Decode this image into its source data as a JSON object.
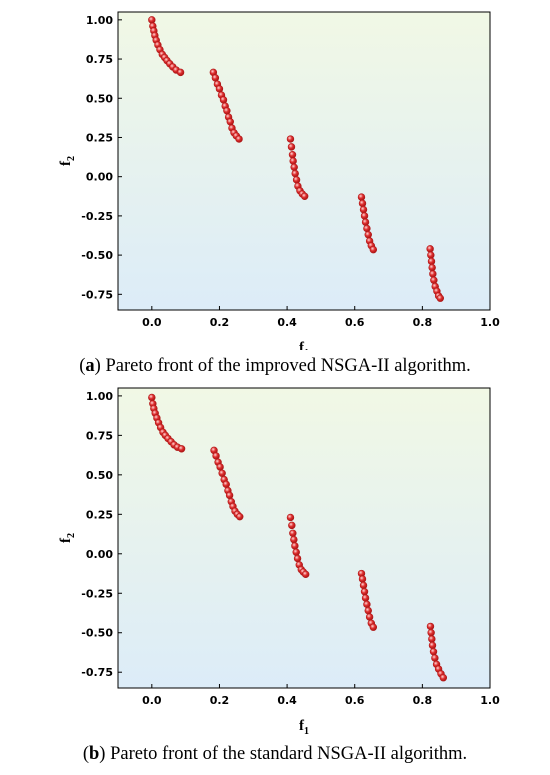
{
  "chart_data": [
    {
      "type": "scatter",
      "caption_letter": "a",
      "caption_text": "Pareto front of the improved NSGA-II algorithm.",
      "xlabel": "f",
      "xlabel_sub": "1",
      "ylabel": "f",
      "ylabel_sub": "2",
      "xlim": [
        -0.1,
        1.0
      ],
      "ylim": [
        -0.85,
        1.05
      ],
      "xticks": [
        0.0,
        0.2,
        0.4,
        0.6,
        0.8,
        1.0
      ],
      "xtick_labels": [
        "0.0",
        "0.2",
        "0.4",
        "0.6",
        "0.8",
        "1.0"
      ],
      "yticks": [
        1.0,
        0.75,
        0.5,
        0.25,
        0.0,
        -0.25,
        -0.5,
        -0.75
      ],
      "ytick_labels": [
        "1.00",
        "0.75",
        "0.50",
        "0.25",
        "0.00",
        "-0.25",
        "-0.50",
        "-0.75"
      ],
      "grid": false,
      "background": "gradient light green (top) to light blue (bottom)",
      "marker_color": "#e03030",
      "series": [
        {
          "points": [
            [
              0.0,
              1.0
            ],
            [
              0.003,
              0.96
            ],
            [
              0.006,
              0.93
            ],
            [
              0.009,
              0.9
            ],
            [
              0.013,
              0.87
            ],
            [
              0.018,
              0.84
            ],
            [
              0.024,
              0.81
            ],
            [
              0.031,
              0.78
            ],
            [
              0.038,
              0.76
            ],
            [
              0.045,
              0.74
            ],
            [
              0.053,
              0.72
            ],
            [
              0.062,
              0.7
            ],
            [
              0.072,
              0.68
            ],
            [
              0.085,
              0.665
            ],
            [
              0.182,
              0.665
            ],
            [
              0.188,
              0.63
            ],
            [
              0.194,
              0.59
            ],
            [
              0.2,
              0.56
            ],
            [
              0.206,
              0.52
            ],
            [
              0.212,
              0.49
            ],
            [
              0.217,
              0.45
            ],
            [
              0.222,
              0.42
            ],
            [
              0.227,
              0.38
            ],
            [
              0.232,
              0.35
            ],
            [
              0.237,
              0.31
            ],
            [
              0.243,
              0.28
            ],
            [
              0.25,
              0.26
            ],
            [
              0.258,
              0.24
            ],
            [
              0.41,
              0.24
            ],
            [
              0.413,
              0.19
            ],
            [
              0.416,
              0.14
            ],
            [
              0.418,
              0.1
            ],
            [
              0.421,
              0.06
            ],
            [
              0.424,
              0.02
            ],
            [
              0.428,
              -0.02
            ],
            [
              0.432,
              -0.06
            ],
            [
              0.438,
              -0.09
            ],
            [
              0.445,
              -0.11
            ],
            [
              0.452,
              -0.125
            ],
            [
              0.62,
              -0.13
            ],
            [
              0.623,
              -0.17
            ],
            [
              0.626,
              -0.21
            ],
            [
              0.629,
              -0.25
            ],
            [
              0.632,
              -0.29
            ],
            [
              0.636,
              -0.33
            ],
            [
              0.64,
              -0.37
            ],
            [
              0.644,
              -0.41
            ],
            [
              0.649,
              -0.44
            ],
            [
              0.655,
              -0.465
            ],
            [
              0.823,
              -0.46
            ],
            [
              0.825,
              -0.5
            ],
            [
              0.827,
              -0.54
            ],
            [
              0.829,
              -0.58
            ],
            [
              0.831,
              -0.62
            ],
            [
              0.834,
              -0.66
            ],
            [
              0.838,
              -0.7
            ],
            [
              0.843,
              -0.73
            ],
            [
              0.848,
              -0.76
            ],
            [
              0.853,
              -0.775
            ]
          ]
        }
      ]
    },
    {
      "type": "scatter",
      "caption_letter": "b",
      "caption_text": "Pareto front of the standard NSGA-II algorithm.",
      "xlabel": "f",
      "xlabel_sub": "1",
      "ylabel": "f",
      "ylabel_sub": "2",
      "xlim": [
        -0.1,
        1.0
      ],
      "ylim": [
        -0.85,
        1.05
      ],
      "xticks": [
        0.0,
        0.2,
        0.4,
        0.6,
        0.8,
        1.0
      ],
      "xtick_labels": [
        "0.0",
        "0.2",
        "0.4",
        "0.6",
        "0.8",
        "1.0"
      ],
      "yticks": [
        1.0,
        0.75,
        0.5,
        0.25,
        0.0,
        -0.25,
        -0.5,
        -0.75
      ],
      "ytick_labels": [
        "1.00",
        "0.75",
        "0.50",
        "0.25",
        "0.00",
        "-0.25",
        "-0.50",
        "-0.75"
      ],
      "grid": false,
      "background": "gradient light green (top) to light blue (bottom)",
      "marker_color": "#e03030",
      "series": [
        {
          "points": [
            [
              0.0,
              0.99
            ],
            [
              0.003,
              0.95
            ],
            [
              0.006,
              0.92
            ],
            [
              0.01,
              0.89
            ],
            [
              0.015,
              0.86
            ],
            [
              0.02,
              0.83
            ],
            [
              0.026,
              0.8
            ],
            [
              0.033,
              0.77
            ],
            [
              0.04,
              0.75
            ],
            [
              0.048,
              0.73
            ],
            [
              0.057,
              0.71
            ],
            [
              0.066,
              0.69
            ],
            [
              0.076,
              0.675
            ],
            [
              0.088,
              0.665
            ],
            [
              0.184,
              0.655
            ],
            [
              0.19,
              0.62
            ],
            [
              0.196,
              0.58
            ],
            [
              0.202,
              0.55
            ],
            [
              0.208,
              0.51
            ],
            [
              0.214,
              0.47
            ],
            [
              0.22,
              0.44
            ],
            [
              0.225,
              0.4
            ],
            [
              0.23,
              0.37
            ],
            [
              0.235,
              0.33
            ],
            [
              0.24,
              0.3
            ],
            [
              0.246,
              0.27
            ],
            [
              0.253,
              0.25
            ],
            [
              0.26,
              0.235
            ],
            [
              0.41,
              0.23
            ],
            [
              0.414,
              0.18
            ],
            [
              0.417,
              0.13
            ],
            [
              0.42,
              0.09
            ],
            [
              0.423,
              0.05
            ],
            [
              0.427,
              0.01
            ],
            [
              0.431,
              -0.03
            ],
            [
              0.436,
              -0.07
            ],
            [
              0.442,
              -0.1
            ],
            [
              0.448,
              -0.115
            ],
            [
              0.455,
              -0.13
            ],
            [
              0.62,
              -0.125
            ],
            [
              0.623,
              -0.16
            ],
            [
              0.626,
              -0.2
            ],
            [
              0.629,
              -0.24
            ],
            [
              0.632,
              -0.28
            ],
            [
              0.636,
              -0.32
            ],
            [
              0.64,
              -0.36
            ],
            [
              0.644,
              -0.4
            ],
            [
              0.649,
              -0.44
            ],
            [
              0.655,
              -0.465
            ],
            [
              0.824,
              -0.46
            ],
            [
              0.826,
              -0.5
            ],
            [
              0.828,
              -0.54
            ],
            [
              0.83,
              -0.58
            ],
            [
              0.833,
              -0.62
            ],
            [
              0.837,
              -0.66
            ],
            [
              0.842,
              -0.7
            ],
            [
              0.848,
              -0.73
            ],
            [
              0.855,
              -0.76
            ],
            [
              0.862,
              -0.785
            ]
          ]
        }
      ]
    }
  ]
}
